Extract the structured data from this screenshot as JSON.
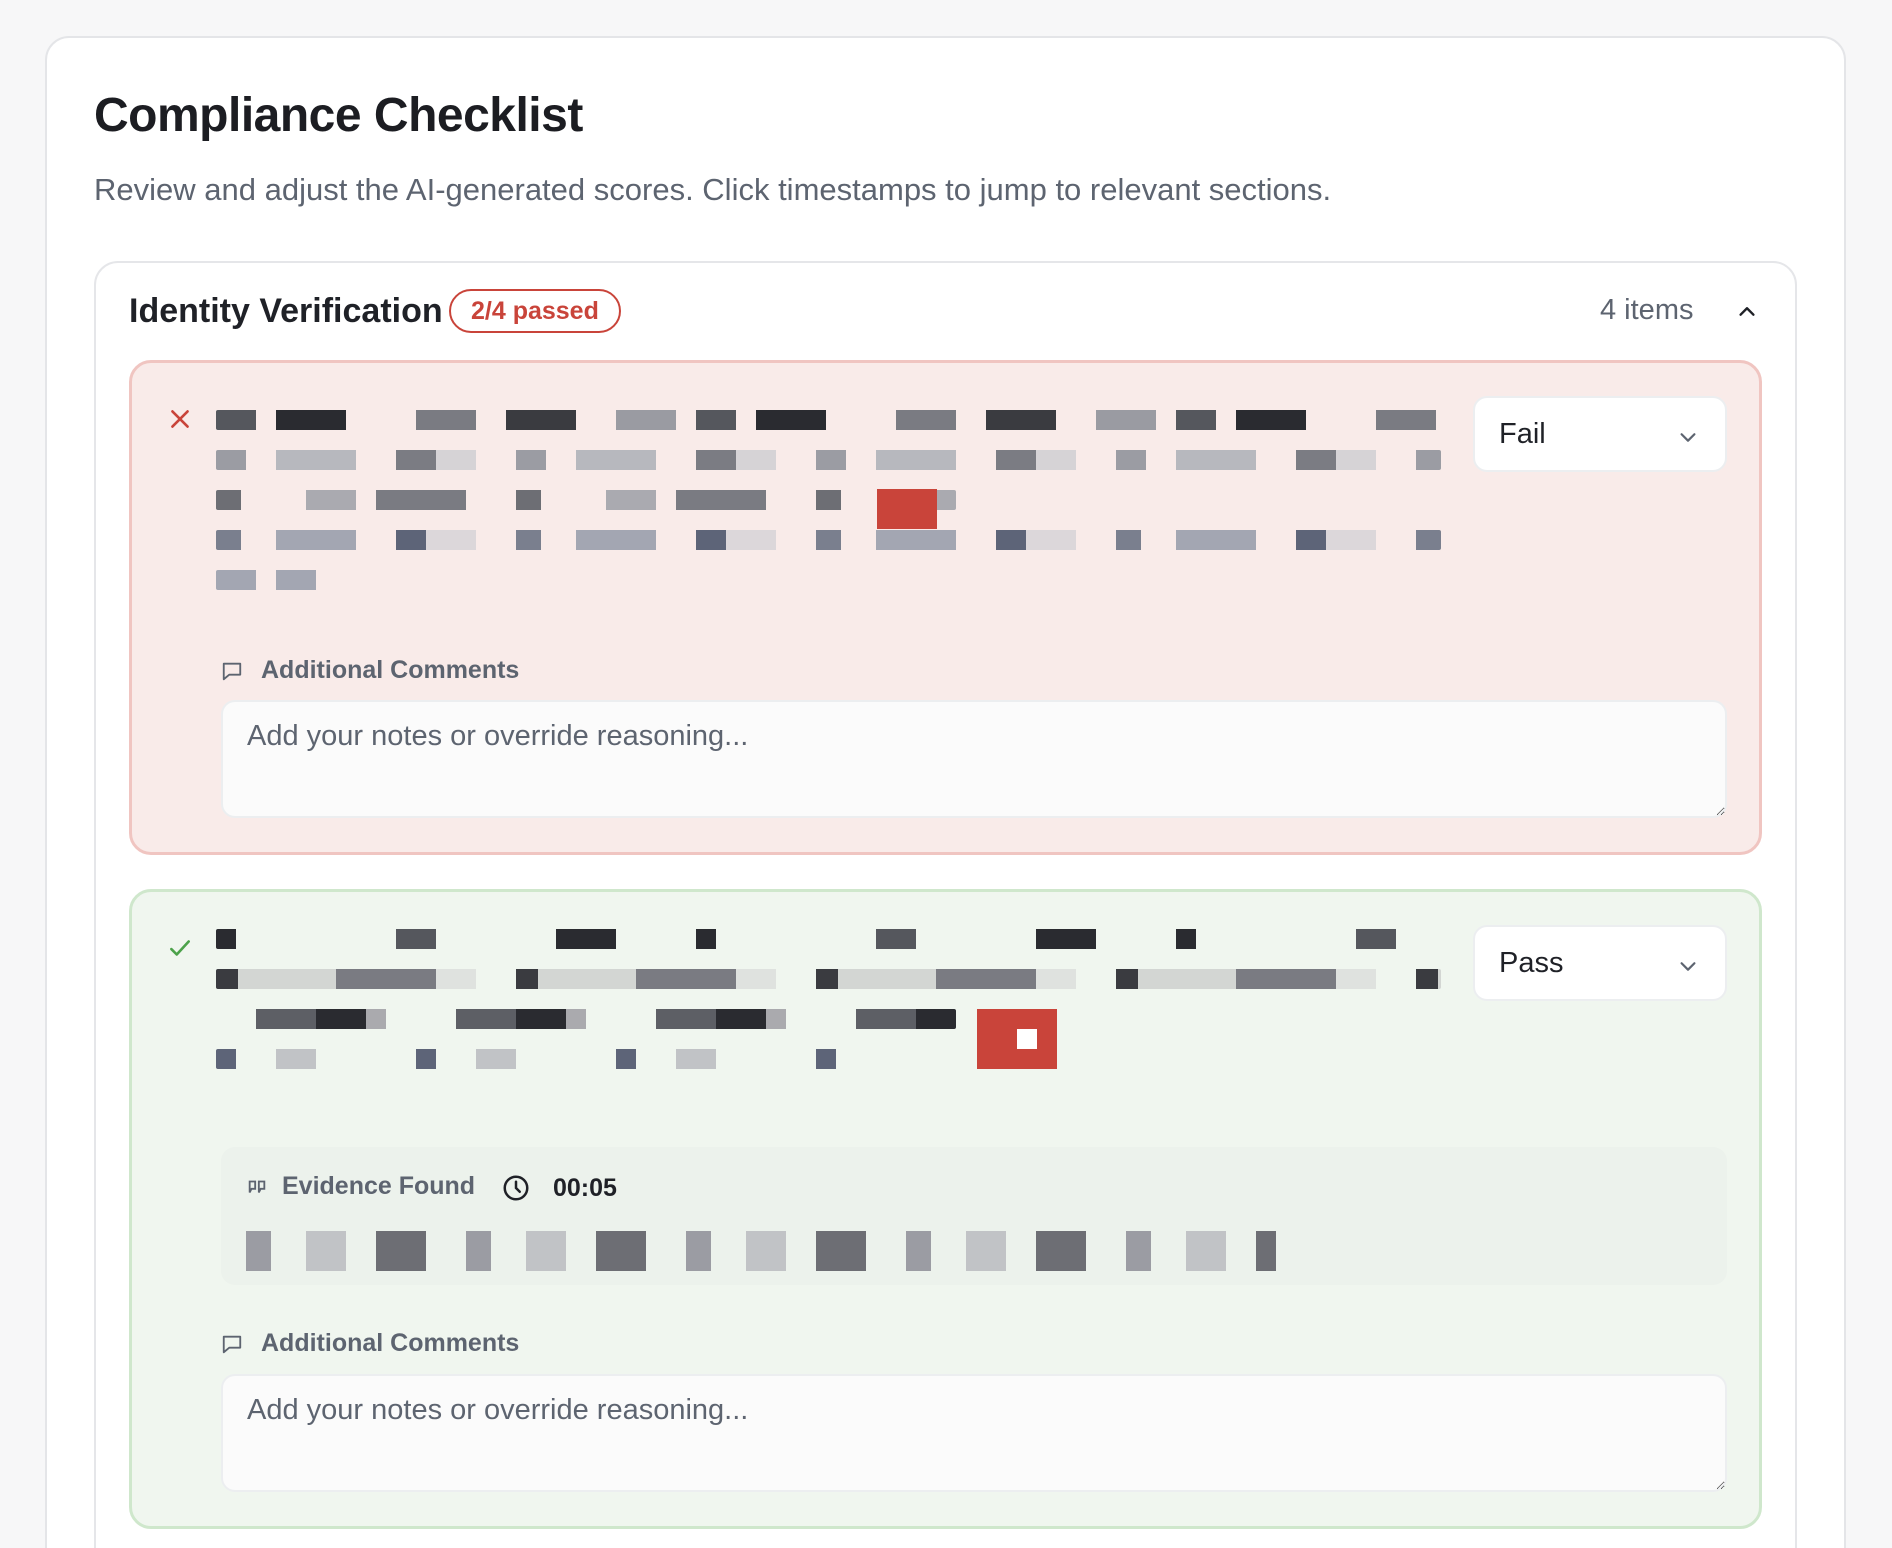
{
  "page": {
    "title": "Compliance Checklist",
    "subtitle": "Review and adjust the AI-generated scores. Click timestamps to jump to relevant sections."
  },
  "section": {
    "title": "Identity Verification",
    "badge": "2/4 passed",
    "count": "4 items",
    "collapse_icon": "chevron-up-icon",
    "colors": {
      "fail_accent": "#c9443a",
      "pass_accent": "#4ca24a"
    }
  },
  "items": [
    {
      "status": "fail",
      "status_icon": "x-icon",
      "select_value": "Fail",
      "comments_label": "Additional Comments",
      "comments_placeholder": "Add your notes or override reasoning..."
    },
    {
      "status": "pass",
      "status_icon": "check-icon",
      "select_value": "Pass",
      "evidence_label": "Evidence Found",
      "evidence_timestamp": "00:05",
      "comments_label": "Additional Comments",
      "comments_placeholder": "Add your notes or override reasoning..."
    }
  ]
}
